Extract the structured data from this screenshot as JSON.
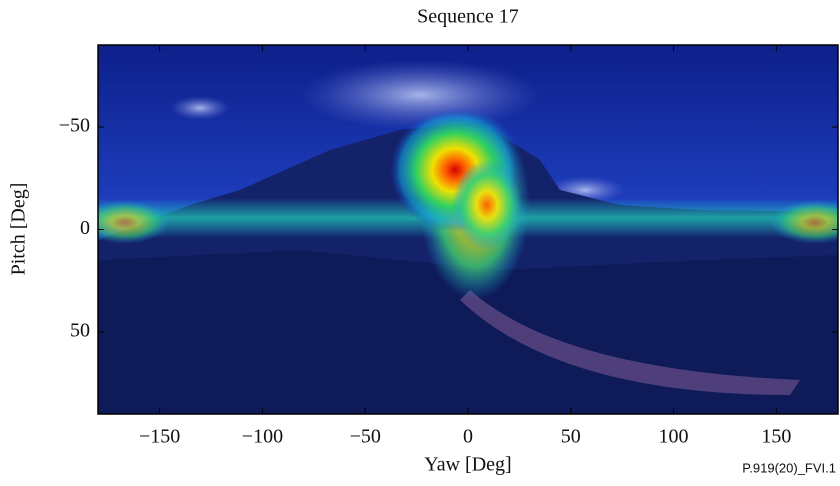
{
  "chart_data": {
    "type": "image",
    "title": "Sequence 17",
    "xlabel": "Yaw [Deg]",
    "ylabel": "Pitch [Deg]",
    "xlim": [
      -180,
      180
    ],
    "ylim": [
      -90,
      90
    ],
    "xticks": [
      {
        "value": -150,
        "label": "−150"
      },
      {
        "value": -100,
        "label": "−100"
      },
      {
        "value": -50,
        "label": "−50"
      },
      0,
      50,
      100,
      150
    ],
    "yticks": [
      {
        "value": -50,
        "label": "−50"
      },
      0,
      50
    ],
    "figure_code": "P.919(20)_FVI.1"
  }
}
